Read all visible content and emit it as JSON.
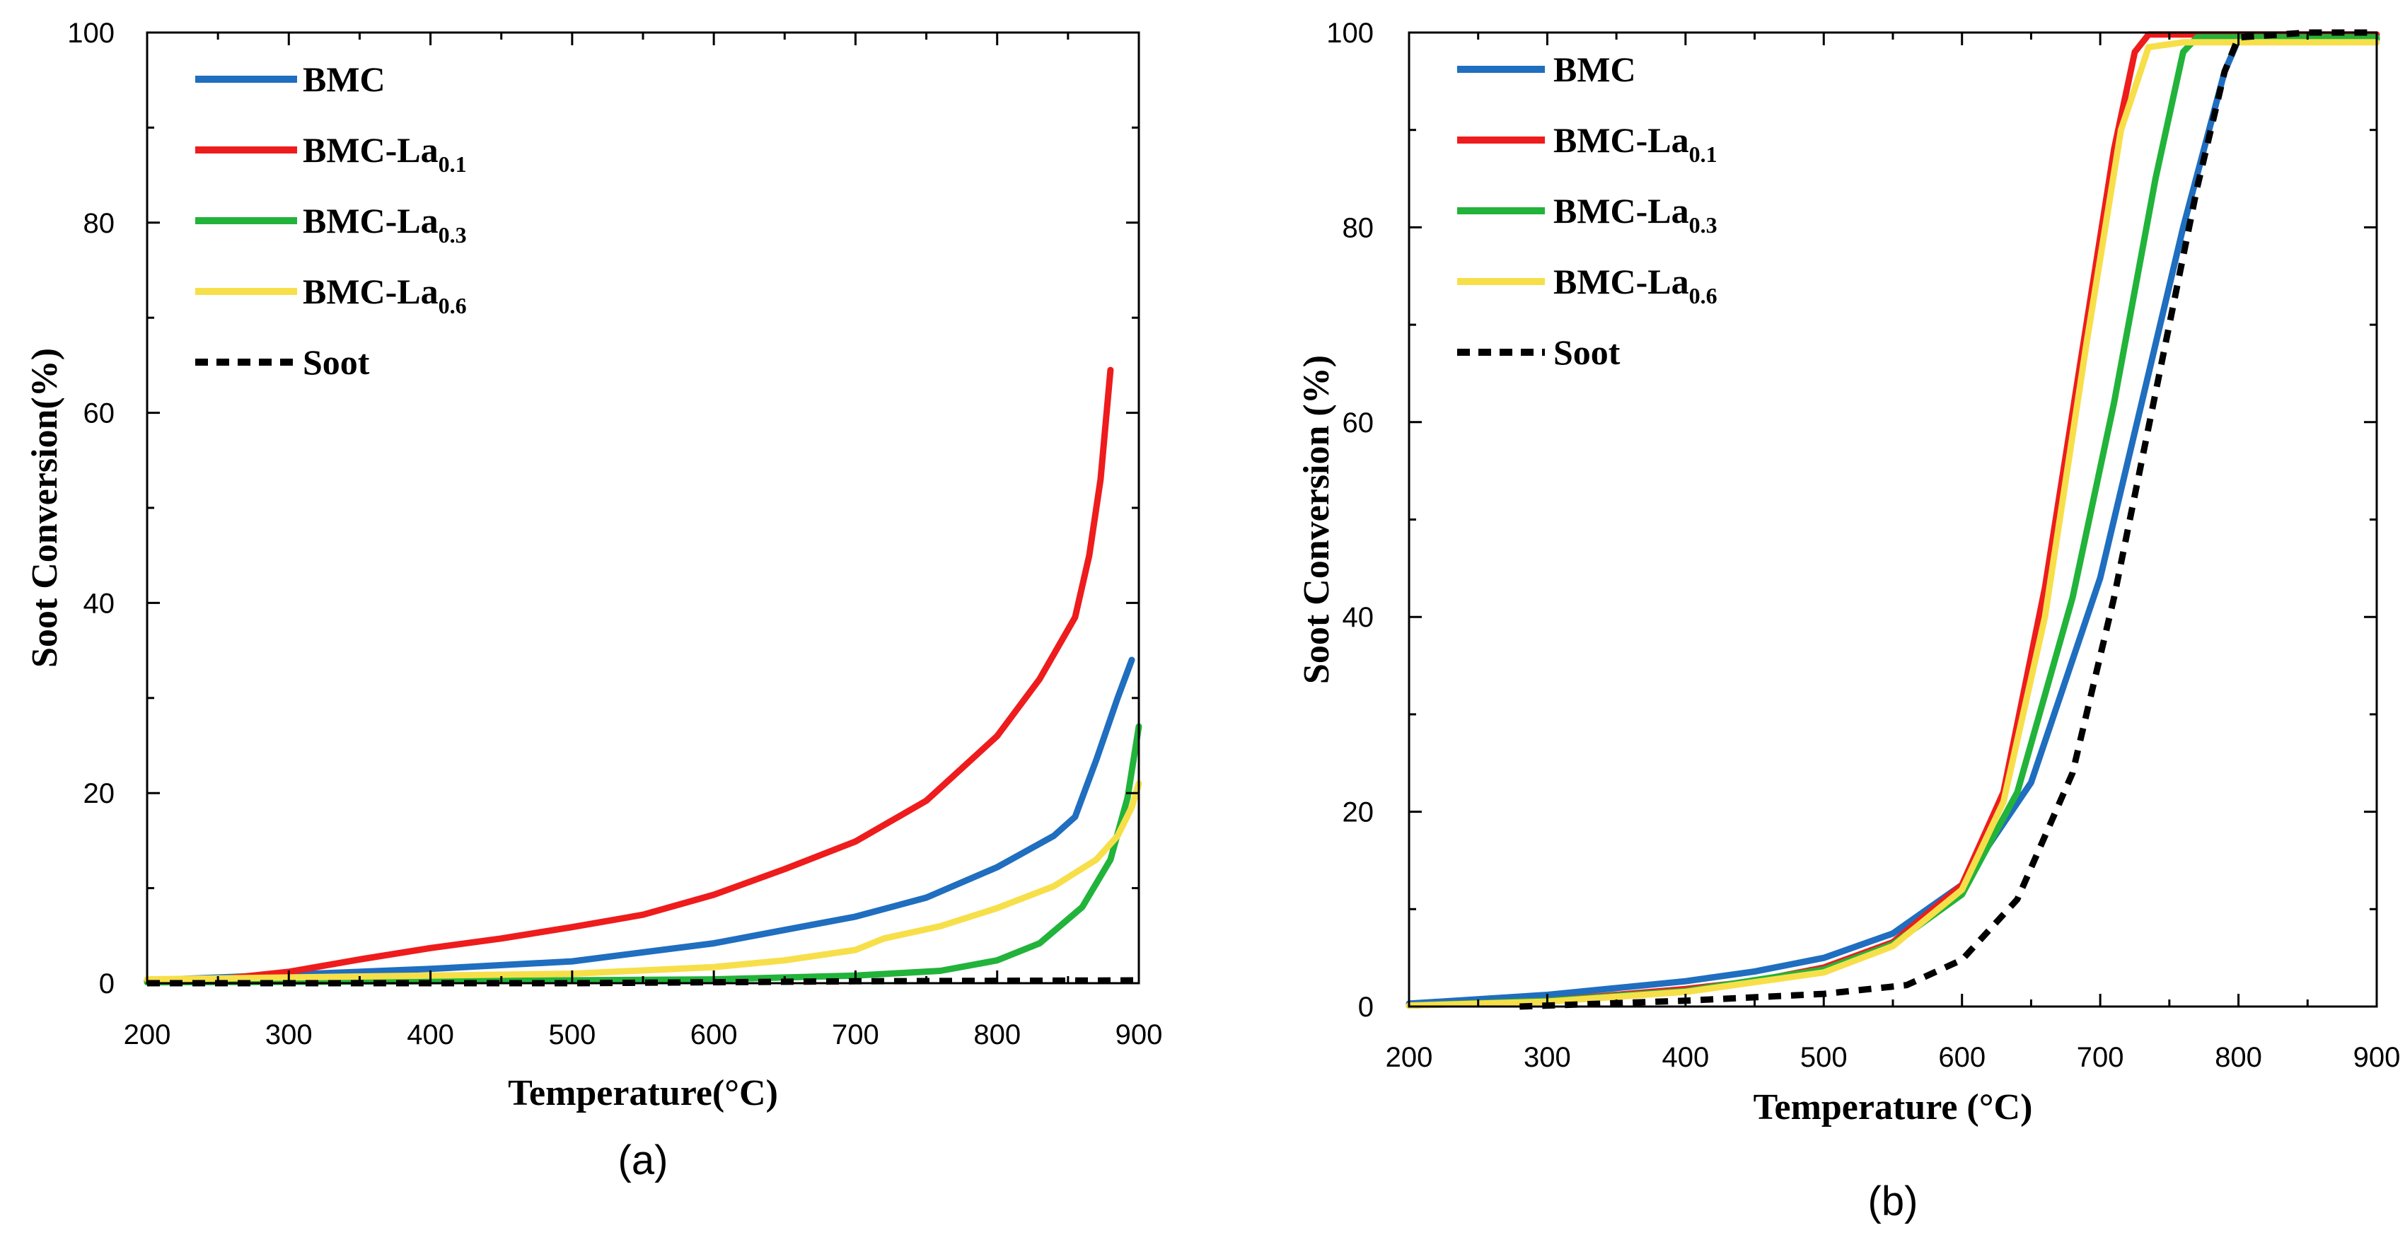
{
  "colors": {
    "BMC": "#1f6ebf",
    "BMC-La0.1": "#ee1c1c",
    "BMC-La0.3": "#22b33a",
    "BMC-La0.6": "#f7df4a",
    "Soot": "#000000"
  },
  "chart_data": [
    {
      "type": "line",
      "panel_label": "(a)",
      "xlabel": "Temperature(°C)",
      "ylabel": "Soot Conversion(%)",
      "xlim": [
        200,
        900
      ],
      "ylim": [
        0,
        100
      ],
      "xticks": [
        200,
        300,
        400,
        500,
        600,
        700,
        800,
        900
      ],
      "yticks": [
        0,
        20,
        40,
        60,
        80,
        100
      ],
      "legend_position": "top-left",
      "series": [
        {
          "name": "BMC",
          "label": "BMC",
          "sub": "",
          "color": "#1f6ebf",
          "dashed": false,
          "points": [
            [
              200,
              0.3
            ],
            [
              300,
              0.9
            ],
            [
              400,
              1.5
            ],
            [
              500,
              2.3
            ],
            [
              600,
              4.2
            ],
            [
              650,
              5.6
            ],
            [
              700,
              7.0
            ],
            [
              750,
              9.0
            ],
            [
              800,
              12.2
            ],
            [
              840,
              15.5
            ],
            [
              855,
              17.5
            ],
            [
              870,
              23.5
            ],
            [
              885,
              30
            ],
            [
              895,
              34
            ]
          ]
        },
        {
          "name": "BMC-La0.1",
          "label": "BMC-La",
          "sub": "0.1",
          "color": "#ee1c1c",
          "dashed": false,
          "points": [
            [
              200,
              0.2
            ],
            [
              250,
              0.4
            ],
            [
              300,
              1.2
            ],
            [
              350,
              2.5
            ],
            [
              400,
              3.7
            ],
            [
              450,
              4.7
            ],
            [
              500,
              5.9
            ],
            [
              550,
              7.2
            ],
            [
              600,
              9.3
            ],
            [
              650,
              12.0
            ],
            [
              700,
              14.9
            ],
            [
              750,
              19.2
            ],
            [
              800,
              26.0
            ],
            [
              830,
              32.0
            ],
            [
              855,
              38.5
            ],
            [
              865,
              45
            ],
            [
              873,
              53
            ],
            [
              880,
              64.5
            ]
          ]
        },
        {
          "name": "BMC-La0.3",
          "label": "BMC-La",
          "sub": "0.3",
          "color": "#22b33a",
          "dashed": false,
          "points": [
            [
              200,
              0.1
            ],
            [
              400,
              0.2
            ],
            [
              600,
              0.4
            ],
            [
              700,
              0.8
            ],
            [
              760,
              1.3
            ],
            [
              800,
              2.4
            ],
            [
              830,
              4.2
            ],
            [
              860,
              8.0
            ],
            [
              880,
              13.0
            ],
            [
              892,
              19.5
            ],
            [
              900,
              27
            ]
          ]
        },
        {
          "name": "BMC-La0.6",
          "label": "BMC-La",
          "sub": "0.6",
          "color": "#f7df4a",
          "dashed": false,
          "points": [
            [
              200,
              0.4
            ],
            [
              400,
              0.8
            ],
            [
              500,
              1.0
            ],
            [
              600,
              1.7
            ],
            [
              650,
              2.4
            ],
            [
              700,
              3.5
            ],
            [
              720,
              4.7
            ],
            [
              760,
              6.0
            ],
            [
              800,
              7.9
            ],
            [
              840,
              10.2
            ],
            [
              870,
              13.0
            ],
            [
              885,
              15.5
            ],
            [
              895,
              18.5
            ],
            [
              900,
              21
            ]
          ]
        },
        {
          "name": "Soot",
          "label": "Soot",
          "sub": "",
          "color": "#000000",
          "dashed": true,
          "points": [
            [
              200,
              0
            ],
            [
              500,
              0
            ],
            [
              700,
              0.2
            ],
            [
              900,
              0.3
            ]
          ]
        }
      ]
    },
    {
      "type": "line",
      "panel_label": "(b)",
      "xlabel": "Temperature (°C)",
      "ylabel": "Soot Conversion (%)",
      "xlim": [
        200,
        900
      ],
      "ylim": [
        0,
        100
      ],
      "xticks": [
        200,
        300,
        400,
        500,
        600,
        700,
        800,
        900
      ],
      "yticks": [
        0,
        20,
        40,
        60,
        80,
        100
      ],
      "legend_position": "top-left",
      "series": [
        {
          "name": "BMC",
          "label": "BMC",
          "sub": "",
          "color": "#1f6ebf",
          "dashed": false,
          "points": [
            [
              200,
              0.3
            ],
            [
              300,
              1.2
            ],
            [
              400,
              2.6
            ],
            [
              450,
              3.6
            ],
            [
              500,
              5.0
            ],
            [
              550,
              7.5
            ],
            [
              600,
              12.5
            ],
            [
              650,
              23
            ],
            [
              700,
              44
            ],
            [
              730,
              62
            ],
            [
              760,
              80
            ],
            [
              790,
              96
            ],
            [
              800,
              99.3
            ],
            [
              900,
              99.3
            ]
          ]
        },
        {
          "name": "BMC-La0.1",
          "label": "BMC-La",
          "sub": "0.1",
          "color": "#ee1c1c",
          "dashed": false,
          "points": [
            [
              200,
              0.1
            ],
            [
              300,
              0.6
            ],
            [
              400,
              1.8
            ],
            [
              450,
              2.6
            ],
            [
              500,
              4.0
            ],
            [
              550,
              6.6
            ],
            [
              600,
              12.5
            ],
            [
              630,
              22
            ],
            [
              660,
              43
            ],
            [
              690,
              70
            ],
            [
              710,
              88
            ],
            [
              725,
              98
            ],
            [
              735,
              99.8
            ],
            [
              900,
              99.8
            ]
          ]
        },
        {
          "name": "BMC-La0.3",
          "label": "BMC-La",
          "sub": "0.3",
          "color": "#22b33a",
          "dashed": false,
          "points": [
            [
              200,
              0.1
            ],
            [
              300,
              0.6
            ],
            [
              400,
              1.6
            ],
            [
              500,
              3.8
            ],
            [
              550,
              6.4
            ],
            [
              600,
              11.5
            ],
            [
              640,
              22
            ],
            [
              680,
              42
            ],
            [
              710,
              62
            ],
            [
              740,
              85
            ],
            [
              760,
              98
            ],
            [
              770,
              99.5
            ],
            [
              900,
              99.5
            ]
          ]
        },
        {
          "name": "BMC-La0.6",
          "label": "BMC-La",
          "sub": "0.6",
          "color": "#f7df4a",
          "dashed": false,
          "points": [
            [
              200,
              0.1
            ],
            [
              300,
              0.5
            ],
            [
              400,
              1.5
            ],
            [
              500,
              3.5
            ],
            [
              550,
              6.2
            ],
            [
              600,
              12
            ],
            [
              630,
              21
            ],
            [
              660,
              40
            ],
            [
              690,
              68
            ],
            [
              715,
              90
            ],
            [
              735,
              98.5
            ],
            [
              760,
              99
            ],
            [
              900,
              99
            ]
          ]
        },
        {
          "name": "Soot",
          "label": "Soot",
          "sub": "",
          "color": "#000000",
          "dashed": true,
          "points": [
            [
              280,
              0
            ],
            [
              300,
              0.1
            ],
            [
              400,
              0.6
            ],
            [
              500,
              1.3
            ],
            [
              560,
              2.2
            ],
            [
              600,
              4.8
            ],
            [
              640,
              11
            ],
            [
              680,
              24
            ],
            [
              710,
              42
            ],
            [
              740,
              63
            ],
            [
              770,
              84
            ],
            [
              790,
              96
            ],
            [
              800,
              99.5
            ],
            [
              850,
              100
            ],
            [
              900,
              100
            ]
          ]
        }
      ]
    }
  ]
}
